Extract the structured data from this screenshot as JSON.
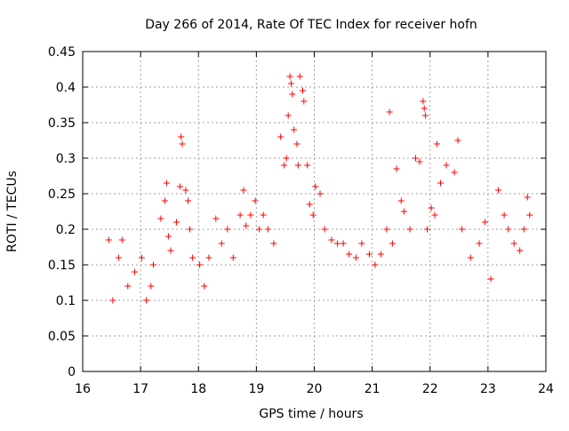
{
  "chart_data": {
    "type": "scatter",
    "title": "Day 266 of 2014, Rate Of TEC Index for receiver hofn",
    "xlabel": "GPS time / hours",
    "ylabel": "ROTI / TECUs",
    "xlim": [
      16,
      24
    ],
    "ylim": [
      0,
      0.45
    ],
    "xticks": [
      "16",
      "17",
      "18",
      "19",
      "20",
      "21",
      "22",
      "23",
      "24"
    ],
    "yticks": [
      "0",
      "0.05",
      "0.1",
      "0.15",
      "0.2",
      "0.25",
      "0.3",
      "0.35",
      "0.4",
      "0.45"
    ],
    "grid": true,
    "marker": "plus",
    "series": [
      {
        "name": "ROTI",
        "color": "#ff0000",
        "x": [
          16.45,
          16.52,
          16.62,
          16.68,
          16.78,
          16.9,
          17.02,
          17.1,
          17.18,
          17.22,
          17.35,
          17.42,
          17.45,
          17.48,
          17.52,
          17.62,
          17.68,
          17.7,
          17.72,
          17.78,
          17.82,
          17.85,
          17.9,
          18.02,
          18.1,
          18.18,
          18.3,
          18.4,
          18.5,
          18.6,
          18.72,
          18.78,
          18.82,
          18.9,
          18.98,
          19.05,
          19.12,
          19.2,
          19.3,
          19.42,
          19.48,
          19.52,
          19.55,
          19.58,
          19.6,
          19.62,
          19.65,
          19.7,
          19.72,
          19.75,
          19.8,
          19.82,
          19.88,
          19.92,
          19.98,
          20.02,
          20.1,
          20.18,
          20.3,
          20.4,
          20.5,
          20.6,
          20.72,
          20.82,
          20.95,
          21.05,
          21.15,
          21.25,
          21.3,
          21.35,
          21.42,
          21.5,
          21.55,
          21.65,
          21.75,
          21.82,
          21.88,
          21.9,
          21.92,
          21.95,
          22.02,
          22.08,
          22.12,
          22.18,
          22.28,
          22.42,
          22.48,
          22.55,
          22.7,
          22.85,
          22.95,
          23.05,
          23.18,
          23.28,
          23.35,
          23.45,
          23.55,
          23.62,
          23.68,
          23.72
        ],
        "y": [
          0.185,
          0.1,
          0.16,
          0.185,
          0.12,
          0.14,
          0.16,
          0.1,
          0.12,
          0.15,
          0.215,
          0.24,
          0.265,
          0.19,
          0.17,
          0.21,
          0.26,
          0.33,
          0.32,
          0.255,
          0.24,
          0.2,
          0.16,
          0.15,
          0.12,
          0.16,
          0.215,
          0.18,
          0.2,
          0.16,
          0.22,
          0.255,
          0.205,
          0.22,
          0.24,
          0.2,
          0.22,
          0.2,
          0.18,
          0.33,
          0.29,
          0.3,
          0.36,
          0.415,
          0.405,
          0.39,
          0.34,
          0.32,
          0.29,
          0.415,
          0.395,
          0.38,
          0.29,
          0.235,
          0.22,
          0.26,
          0.25,
          0.2,
          0.185,
          0.18,
          0.18,
          0.165,
          0.16,
          0.18,
          0.165,
          0.15,
          0.165,
          0.2,
          0.365,
          0.18,
          0.285,
          0.24,
          0.225,
          0.2,
          0.3,
          0.295,
          0.38,
          0.37,
          0.36,
          0.2,
          0.23,
          0.22,
          0.32,
          0.265,
          0.29,
          0.28,
          0.325,
          0.2,
          0.16,
          0.18,
          0.21,
          0.13,
          0.255,
          0.22,
          0.2,
          0.18,
          0.17,
          0.2,
          0.245,
          0.22
        ]
      }
    ]
  }
}
